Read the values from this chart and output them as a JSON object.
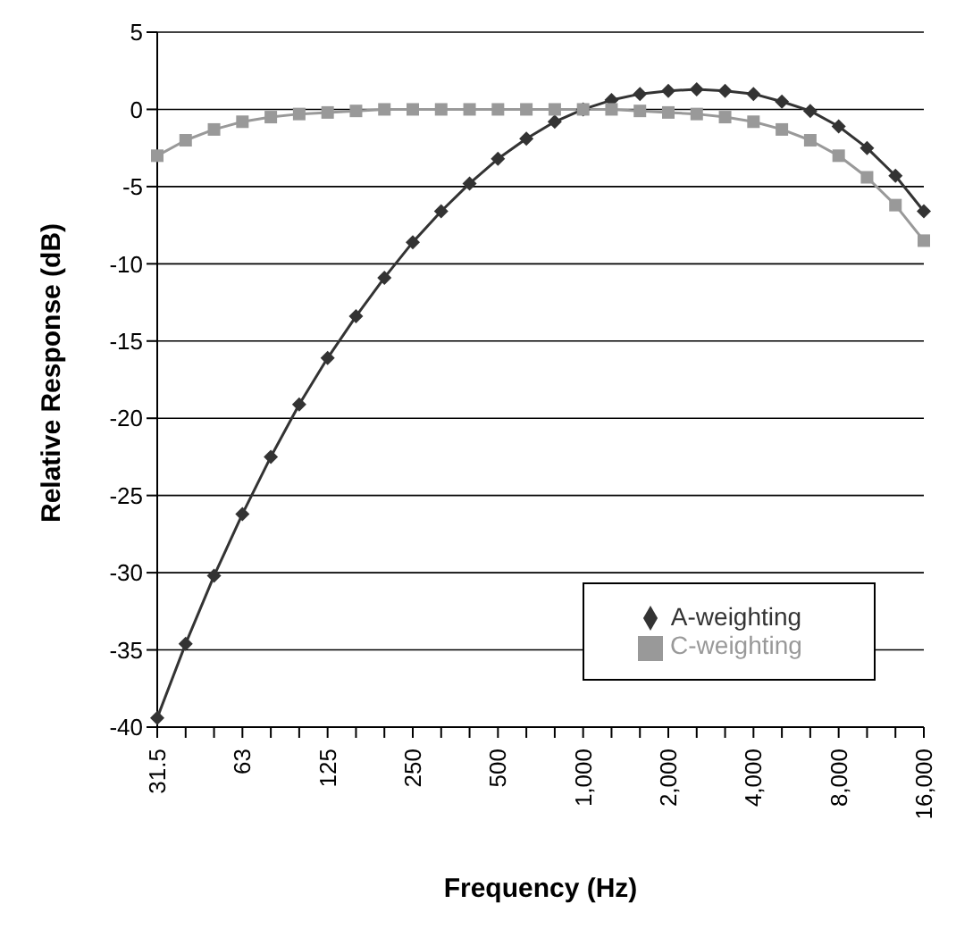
{
  "chart_data": {
    "type": "line",
    "xlabel": "Frequency (Hz)",
    "ylabel": "Relative Response (dB)",
    "categories": [
      "31.5",
      null,
      null,
      "63",
      null,
      null,
      "125",
      null,
      null,
      "250",
      null,
      null,
      "500",
      null,
      null,
      "1,000",
      null,
      null,
      "2,000",
      null,
      null,
      "4,000",
      null,
      null,
      "8,000",
      null,
      null,
      "16,000"
    ],
    "series": [
      {
        "name": "A-weighting",
        "color": "#333333",
        "marker": "diamond",
        "values": [
          -39.4,
          -34.6,
          -30.2,
          -26.2,
          -22.5,
          -19.1,
          -16.1,
          -13.4,
          -10.9,
          -8.6,
          -6.6,
          -4.8,
          -3.2,
          -1.9,
          -0.8,
          0,
          0.6,
          1.0,
          1.2,
          1.3,
          1.2,
          1.0,
          0.5,
          -0.1,
          -1.1,
          -2.5,
          -4.3,
          -6.6
        ]
      },
      {
        "name": "C-weighting",
        "color": "#999999",
        "marker": "square",
        "values": [
          -3.0,
          -2.0,
          -1.3,
          -0.8,
          -0.5,
          -0.3,
          -0.2,
          -0.1,
          0,
          0,
          0,
          0,
          0,
          0,
          0,
          0,
          0,
          -0.1,
          -0.2,
          -0.3,
          -0.5,
          -0.8,
          -1.3,
          -2.0,
          -3.0,
          -4.4,
          -6.2,
          -8.5
        ]
      }
    ],
    "ylim": [
      -40,
      5
    ],
    "yticks": [
      -40,
      -35,
      -30,
      -25,
      -20,
      -15,
      -10,
      -5,
      0,
      5
    ],
    "grid": "y",
    "legend": "bottom right",
    "line_style": "solid"
  }
}
